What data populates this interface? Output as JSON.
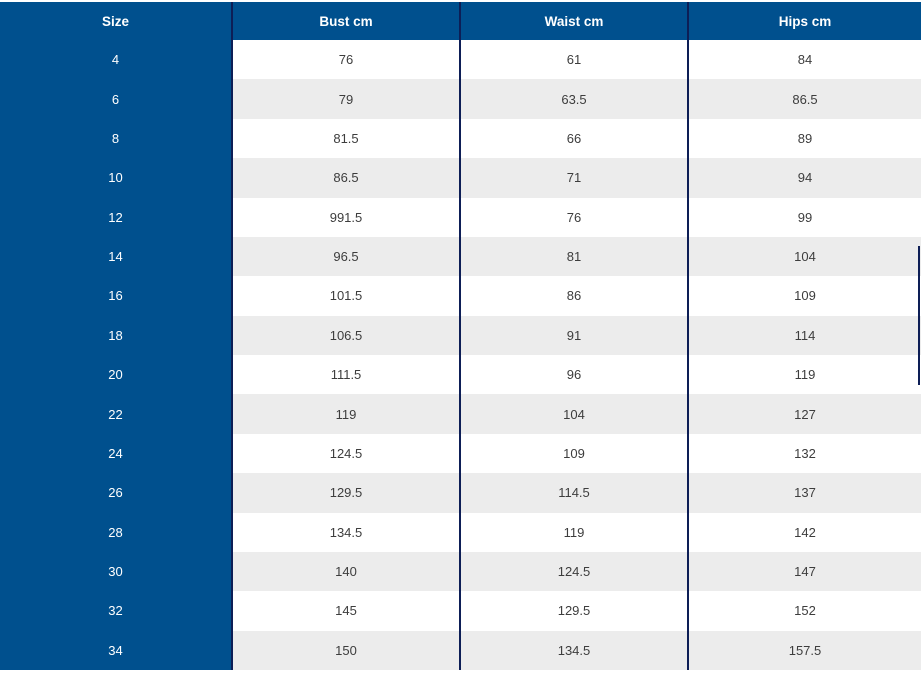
{
  "table": {
    "columns": [
      "Size",
      "Bust cm",
      "Waist cm",
      "Hips cm"
    ],
    "rows": [
      {
        "size": "4",
        "bust": "76",
        "waist": "61",
        "hips": "84"
      },
      {
        "size": "6",
        "bust": "79",
        "waist": "63.5",
        "hips": "86.5"
      },
      {
        "size": "8",
        "bust": "81.5",
        "waist": "66",
        "hips": "89"
      },
      {
        "size": "10",
        "bust": "86.5",
        "waist": "71",
        "hips": "94"
      },
      {
        "size": "12",
        "bust": "991.5",
        "waist": "76",
        "hips": "99"
      },
      {
        "size": "14",
        "bust": "96.5",
        "waist": "81",
        "hips": "104"
      },
      {
        "size": "16",
        "bust": "101.5",
        "waist": "86",
        "hips": "109"
      },
      {
        "size": "18",
        "bust": "106.5",
        "waist": "91",
        "hips": "114"
      },
      {
        "size": "20",
        "bust": "111.5",
        "waist": "96",
        "hips": "119"
      },
      {
        "size": "22",
        "bust": "119",
        "waist": "104",
        "hips": "127"
      },
      {
        "size": "24",
        "bust": "124.5",
        "waist": "109",
        "hips": "132"
      },
      {
        "size": "26",
        "bust": "129.5",
        "waist": "114.5",
        "hips": "137"
      },
      {
        "size": "28",
        "bust": "134.5",
        "waist": "119",
        "hips": "142"
      },
      {
        "size": "30",
        "bust": "140",
        "waist": "124.5",
        "hips": "147"
      },
      {
        "size": "32",
        "bust": "145",
        "waist": "129.5",
        "hips": "152"
      },
      {
        "size": "34",
        "bust": "150",
        "waist": "134.5",
        "hips": "157.5"
      }
    ]
  },
  "chart_data": {
    "type": "table",
    "columns": [
      "Size",
      "Bust cm",
      "Waist cm",
      "Hips cm"
    ],
    "rows": [
      [
        "4",
        "76",
        "61",
        "84"
      ],
      [
        "6",
        "79",
        "63.5",
        "86.5"
      ],
      [
        "8",
        "81.5",
        "66",
        "89"
      ],
      [
        "10",
        "86.5",
        "71",
        "94"
      ],
      [
        "12",
        "991.5",
        "76",
        "99"
      ],
      [
        "14",
        "96.5",
        "81",
        "104"
      ],
      [
        "16",
        "101.5",
        "86",
        "109"
      ],
      [
        "18",
        "106.5",
        "91",
        "114"
      ],
      [
        "20",
        "111.5",
        "96",
        "119"
      ],
      [
        "22",
        "119",
        "104",
        "127"
      ],
      [
        "24",
        "124.5",
        "109",
        "132"
      ],
      [
        "26",
        "129.5",
        "114.5",
        "137"
      ],
      [
        "28",
        "134.5",
        "119",
        "142"
      ],
      [
        "30",
        "140",
        "124.5",
        "147"
      ],
      [
        "32",
        "145",
        "129.5",
        "152"
      ],
      [
        "34",
        "150",
        "134.5",
        "157.5"
      ]
    ]
  },
  "colors": {
    "header_blue": "#00508e",
    "divider_navy": "#0d1e56",
    "stripe_gray": "#ececec",
    "row_white": "#ffffff",
    "header_text": "#ffffff",
    "data_text": "#3d3d3d",
    "scrollbar_thumb": "#0d1e56"
  }
}
